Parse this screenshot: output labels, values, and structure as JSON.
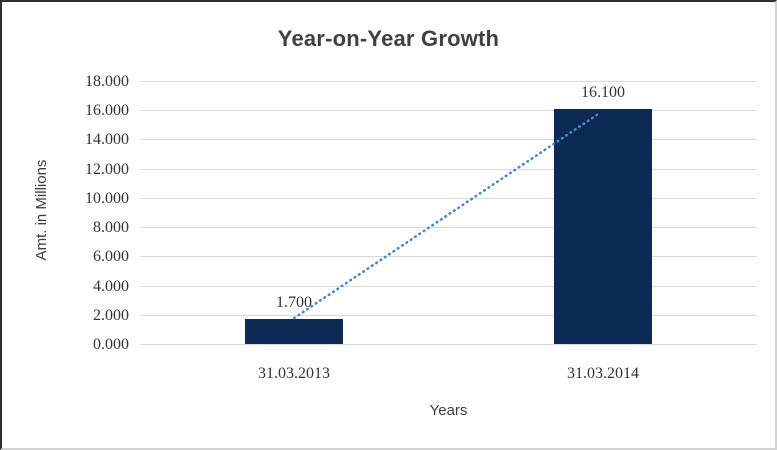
{
  "chart_data": {
    "type": "bar",
    "title": "Year-on-Year Growth",
    "xlabel": "Years",
    "ylabel": "Amt. in Millions",
    "categories": [
      "31.03.2013",
      "31.03.2014"
    ],
    "values": [
      1.7,
      16.1
    ],
    "value_labels": [
      "1.700",
      "16.100"
    ],
    "ylim": [
      0,
      18
    ],
    "ytick_step": 2,
    "ytick_labels": [
      "0.000",
      "2.000",
      "4.000",
      "6.000",
      "8.000",
      "10.000",
      "12.000",
      "14.000",
      "16.000",
      "18.000"
    ],
    "grid": true,
    "legend": "none",
    "trendline": {
      "style": "dotted",
      "connects": [
        "31.03.2013",
        "31.03.2014"
      ]
    },
    "colors": {
      "bar": "#0d2a57",
      "gridline": "#d9d9d9",
      "trend": "#4e86c6",
      "title_text": "#404040",
      "tick_text": "#333333"
    }
  }
}
